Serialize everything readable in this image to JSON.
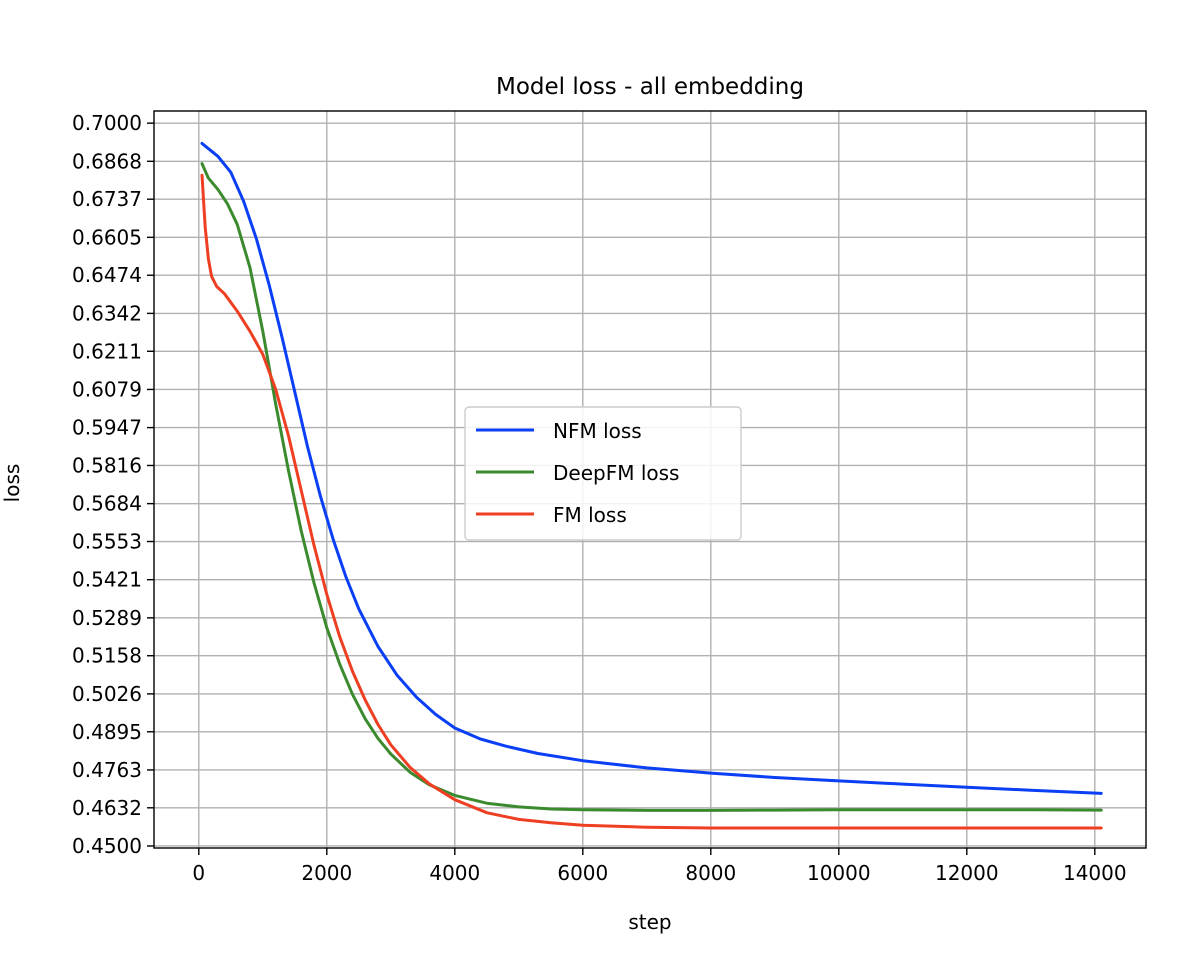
{
  "chart_data": {
    "type": "line",
    "title": "Model loss - all embedding",
    "xlabel": "step",
    "ylabel": "loss",
    "xlim": [
      -700,
      14800
    ],
    "ylim": [
      0.4493,
      0.7042
    ],
    "grid": true,
    "legend_position": "center",
    "x_ticks": [
      0,
      2000,
      4000,
      6000,
      8000,
      10000,
      12000,
      14000
    ],
    "x_tick_labels": [
      "0",
      "2000",
      "4000",
      "6000",
      "8000",
      "10000",
      "12000",
      "14000"
    ],
    "y_ticks": [
      0.45,
      0.4632,
      0.4763,
      0.4895,
      0.5026,
      0.5158,
      0.5289,
      0.5421,
      0.5553,
      0.5684,
      0.5816,
      0.5947,
      0.6079,
      0.6211,
      0.6342,
      0.6474,
      0.6605,
      0.6737,
      0.6868,
      0.7
    ],
    "y_tick_labels": [
      "0.4500",
      "0.4632",
      "0.4763",
      "0.4895",
      "0.5026",
      "0.5158",
      "0.5289",
      "0.5421",
      "0.5553",
      "0.5684",
      "0.5816",
      "0.5947",
      "0.6079",
      "0.6211",
      "0.6342",
      "0.6474",
      "0.6605",
      "0.6737",
      "0.6868",
      "0.7000"
    ],
    "series": [
      {
        "name": "NFM loss",
        "color": "#0a3ff5",
        "x": [
          50,
          300,
          500,
          700,
          900,
          1100,
          1300,
          1500,
          1700,
          1900,
          2100,
          2300,
          2500,
          2800,
          3100,
          3400,
          3700,
          4000,
          4400,
          4800,
          5300,
          6000,
          7000,
          8000,
          9000,
          10000,
          11000,
          12000,
          13000,
          14100
        ],
        "y": [
          0.693,
          0.6885,
          0.683,
          0.673,
          0.66,
          0.644,
          0.626,
          0.607,
          0.588,
          0.571,
          0.556,
          0.543,
          0.532,
          0.519,
          0.509,
          0.5015,
          0.4955,
          0.4908,
          0.487,
          0.4845,
          0.482,
          0.4795,
          0.477,
          0.4752,
          0.4737,
          0.4725,
          0.4714,
          0.4703,
          0.4693,
          0.4682
        ]
      },
      {
        "name": "DeepFM loss",
        "color": "#3c8a2e",
        "x": [
          50,
          150,
          300,
          450,
          600,
          800,
          1000,
          1200,
          1400,
          1600,
          1800,
          2000,
          2200,
          2400,
          2600,
          2800,
          3000,
          3300,
          3600,
          4000,
          4500,
          5000,
          5500,
          6000,
          7000,
          8000,
          9000,
          10000,
          11000,
          12000,
          13000,
          14100
        ],
        "y": [
          0.686,
          0.681,
          0.677,
          0.672,
          0.665,
          0.65,
          0.628,
          0.603,
          0.58,
          0.559,
          0.541,
          0.5255,
          0.513,
          0.5025,
          0.494,
          0.4872,
          0.4818,
          0.4755,
          0.4712,
          0.4675,
          0.4648,
          0.4635,
          0.4628,
          0.4625,
          0.4623,
          0.4623,
          0.4624,
          0.4625,
          0.4625,
          0.4625,
          0.4625,
          0.4624
        ]
      },
      {
        "name": "FM loss",
        "color": "#ee3f22",
        "x": [
          50,
          100,
          150,
          200,
          280,
          400,
          600,
          800,
          1000,
          1200,
          1400,
          1600,
          1800,
          2000,
          2200,
          2400,
          2600,
          2800,
          3000,
          3300,
          3600,
          4000,
          4500,
          5000,
          5500,
          6000,
          7000,
          8000,
          9000,
          10000,
          11000,
          12000,
          13000,
          14100
        ],
        "y": [
          0.682,
          0.664,
          0.653,
          0.647,
          0.6435,
          0.641,
          0.635,
          0.628,
          0.62,
          0.608,
          0.592,
          0.573,
          0.554,
          0.537,
          0.5225,
          0.5105,
          0.5005,
          0.492,
          0.485,
          0.4772,
          0.4715,
          0.466,
          0.4615,
          0.4592,
          0.458,
          0.4572,
          0.4565,
          0.4562,
          0.4562,
          0.4562,
          0.4562,
          0.4562,
          0.4562,
          0.4562
        ]
      }
    ]
  }
}
